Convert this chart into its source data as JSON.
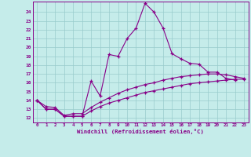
{
  "xlabel": "Windchill (Refroidissement éolien,°C)",
  "xlim": [
    -0.5,
    23.5
  ],
  "ylim": [
    11.5,
    25.2
  ],
  "xticks": [
    0,
    1,
    2,
    3,
    4,
    5,
    6,
    7,
    8,
    9,
    10,
    11,
    12,
    13,
    14,
    15,
    16,
    17,
    18,
    19,
    20,
    21,
    22,
    23
  ],
  "yticks": [
    12,
    13,
    14,
    15,
    16,
    17,
    18,
    19,
    20,
    21,
    22,
    23,
    24
  ],
  "bg_color": "#c5ecea",
  "line_color": "#880088",
  "grid_color": "#99cccc",
  "x_series1": [
    0,
    1,
    2,
    3,
    4,
    5,
    6,
    7,
    8,
    9,
    10,
    11,
    12,
    13,
    14,
    15,
    16,
    17,
    18,
    19,
    20,
    21,
    22
  ],
  "y_series1": [
    14.0,
    13.0,
    13.0,
    12.2,
    12.2,
    12.2,
    16.2,
    14.5,
    19.2,
    19.0,
    21.0,
    22.2,
    25.0,
    24.0,
    22.2,
    19.3,
    18.7,
    18.2,
    18.1,
    17.2,
    17.2,
    16.5,
    16.3
  ],
  "x_series2": [
    0,
    1,
    2,
    3,
    4,
    5,
    6,
    7,
    8,
    9,
    10,
    11,
    12,
    13,
    14,
    15,
    16,
    17,
    18,
    19,
    20,
    21,
    22,
    23
  ],
  "y_series2": [
    14.0,
    13.3,
    13.2,
    12.3,
    12.5,
    12.5,
    13.2,
    13.8,
    14.3,
    14.8,
    15.2,
    15.5,
    15.8,
    16.0,
    16.3,
    16.5,
    16.7,
    16.8,
    16.9,
    17.0,
    17.0,
    16.9,
    16.7,
    16.5
  ],
  "x_series3": [
    0,
    1,
    2,
    3,
    4,
    5,
    6,
    7,
    8,
    9,
    10,
    11,
    12,
    13,
    14,
    15,
    16,
    17,
    18,
    19,
    20,
    21,
    22,
    23
  ],
  "y_series3": [
    14.0,
    13.0,
    13.0,
    12.2,
    12.2,
    12.2,
    12.8,
    13.3,
    13.7,
    14.0,
    14.3,
    14.6,
    14.9,
    15.1,
    15.3,
    15.5,
    15.7,
    15.9,
    16.0,
    16.1,
    16.2,
    16.3,
    16.4,
    16.4
  ]
}
